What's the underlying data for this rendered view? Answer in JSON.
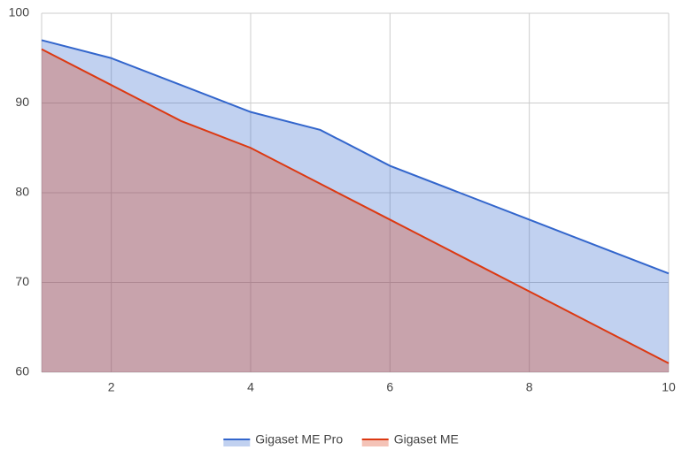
{
  "chart_data": {
    "type": "area",
    "x": [
      1,
      2,
      3,
      4,
      5,
      6,
      7,
      8,
      9,
      10
    ],
    "series": [
      {
        "name": "Gigaset ME Pro",
        "color": "#3366cc",
        "values": [
          97,
          95,
          92,
          89,
          87,
          83,
          80,
          77,
          74,
          71
        ]
      },
      {
        "name": "Gigaset ME",
        "color": "#dc3912",
        "values": [
          96,
          92,
          88,
          85,
          81,
          77,
          73,
          69,
          65,
          61
        ]
      }
    ],
    "xlim": [
      1,
      10
    ],
    "xticks": [
      2,
      4,
      6,
      8,
      10
    ],
    "ylim": [
      60,
      100
    ],
    "yticks": [
      60,
      70,
      80,
      90,
      100
    ],
    "grid": true,
    "legend": "bottom"
  }
}
